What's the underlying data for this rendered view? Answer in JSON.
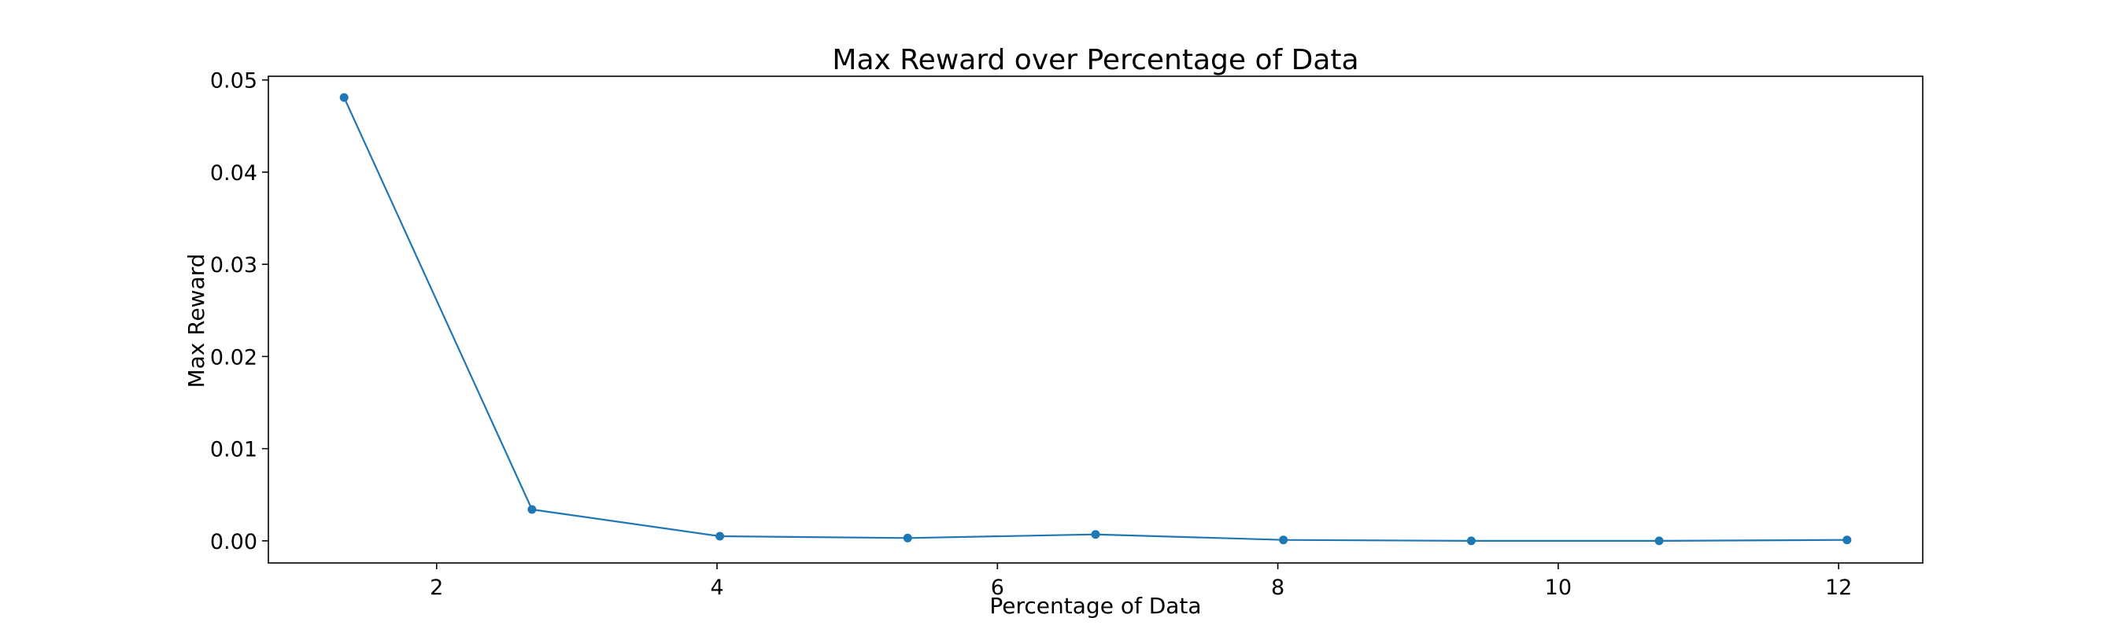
{
  "chart_data": {
    "type": "line",
    "title": "Max Reward over Percentage of Data",
    "xlabel": "Percentage of Data",
    "ylabel": "Max Reward",
    "xlim": [
      0.8,
      12.6
    ],
    "ylim": [
      -0.0024,
      0.0504
    ],
    "xticks": [
      2,
      4,
      6,
      8,
      10,
      12
    ],
    "xtick_labels": [
      "2",
      "4",
      "6",
      "8",
      "10",
      "12"
    ],
    "yticks": [
      0.0,
      0.01,
      0.02,
      0.03,
      0.04,
      0.05
    ],
    "ytick_labels": [
      "0.00",
      "0.01",
      "0.02",
      "0.03",
      "0.04",
      "0.05"
    ],
    "grid": false,
    "legend": "none",
    "series": [
      {
        "color": "#1f77b4",
        "marker": "circle",
        "x": [
          1.34,
          2.68,
          4.02,
          5.36,
          6.7,
          8.04,
          9.38,
          10.72,
          12.06
        ],
        "y": [
          0.0481,
          0.0034,
          0.0005,
          0.0003,
          0.0007,
          0.0001,
          0.0,
          0.0,
          0.0001
        ]
      }
    ]
  }
}
